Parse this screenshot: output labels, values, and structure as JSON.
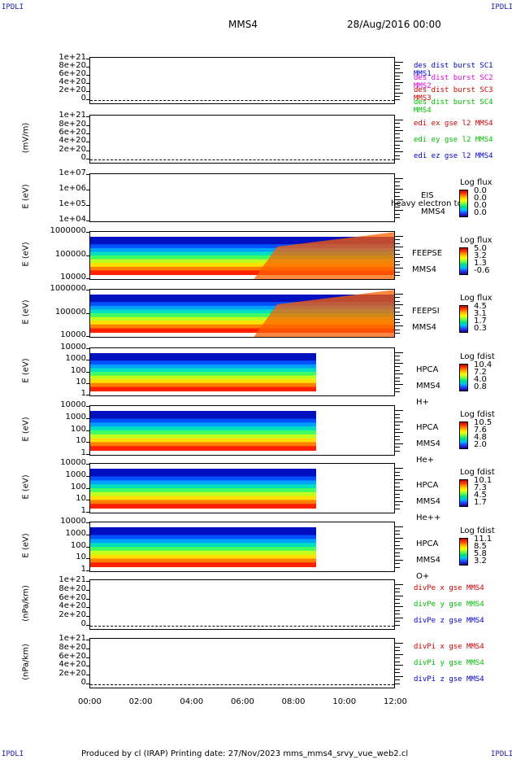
{
  "corners": {
    "tl": "IPDLI",
    "tr": "IPDLI",
    "bl": "IPDLI",
    "br": "IPDLI"
  },
  "header": {
    "title": "MMS4",
    "date": "28/Aug/2016 00:00"
  },
  "footer": {
    "text": "Produced by cl (IRAP)   Printing date: 27/Nov/2023   mms_mms4_srvy_vue_web2.cl"
  },
  "xaxis": {
    "ticks": [
      "00:00",
      "02:00",
      "04:00",
      "06:00",
      "08:00",
      "10:00",
      "12:00"
    ]
  },
  "colors": {
    "red": "#cc0000",
    "magenta": "#dd00dd",
    "green": "#00bb00",
    "blue": "#0000cc"
  },
  "chart_data": [
    {
      "type": "line",
      "panel": "des_dist",
      "ylabel": "",
      "yticks": [
        "1e+21",
        "8e+20",
        "6e+20",
        "4e+20",
        "2e+20",
        "0"
      ],
      "legend": [
        "des dist burst SC1 MMS1",
        "des dist burst SC2 MMS2",
        "des dist burst SC3 MMS3",
        "des dist burst SC4 MMS4"
      ]
    },
    {
      "type": "line",
      "panel": "edi_e",
      "ylabel": "(mV/m)",
      "yticks": [
        "1e+21",
        "8e+20",
        "6e+20",
        "4e+20",
        "2e+20",
        "0"
      ],
      "legend": [
        "edi ex gse l2 MMS4",
        "edi ey gse l2 MMS4",
        "edi ez gse l2 MMS4"
      ]
    },
    {
      "type": "heatmap",
      "panel": "eis",
      "ylabel": "E (eV)",
      "yticks": [
        "1e+07",
        "1e+06",
        "1e+05",
        "1e+04"
      ],
      "labels": [
        "EIS",
        "MMS4"
      ],
      "overlay": "heavy electron to",
      "cbar_title": "Log flux",
      "cbar_values": [
        "0.0",
        "0.0",
        "0.0",
        "0.0"
      ]
    },
    {
      "type": "heatmap",
      "panel": "feepse",
      "ylabel": "E (eV)",
      "yticks": [
        "1000000",
        "100000",
        "10000"
      ],
      "labels": [
        "FEEPSE",
        "MMS4"
      ],
      "cbar_title": "Log flux",
      "cbar_values": [
        "5.0",
        "3.2",
        "1.3",
        "-0.6"
      ]
    },
    {
      "type": "heatmap",
      "panel": "feepsi",
      "ylabel": "E (eV)",
      "yticks": [
        "1000000",
        "100000",
        "10000"
      ],
      "labels": [
        "FEEPSI",
        "MMS4"
      ],
      "cbar_title": "Log flux",
      "cbar_values": [
        "4.5",
        "3.1",
        "1.7",
        "0.3"
      ]
    },
    {
      "type": "heatmap",
      "panel": "hpca_h",
      "ylabel": "E (eV)",
      "yticks": [
        "10000",
        "1000",
        "100",
        "10",
        "1"
      ],
      "labels": [
        "HPCA",
        "MMS4",
        "H+"
      ],
      "cbar_title": "Log fdist",
      "cbar_values": [
        "10.4",
        "7.2",
        "4.0",
        "0.8"
      ]
    },
    {
      "type": "heatmap",
      "panel": "hpca_he",
      "ylabel": "E (eV)",
      "yticks": [
        "10000",
        "1000",
        "100",
        "10",
        "1"
      ],
      "labels": [
        "HPCA",
        "MMS4",
        "He+"
      ],
      "cbar_title": "Log fdist",
      "cbar_values": [
        "10.5",
        "7.6",
        "4.8",
        "2.0"
      ]
    },
    {
      "type": "heatmap",
      "panel": "hpca_hepp",
      "ylabel": "E (eV)",
      "yticks": [
        "10000",
        "1000",
        "100",
        "10",
        "1"
      ],
      "labels": [
        "HPCA",
        "MMS4",
        "He++"
      ],
      "cbar_title": "Log fdist",
      "cbar_values": [
        "10.1",
        "7.3",
        "4.5",
        "1.7"
      ]
    },
    {
      "type": "heatmap",
      "panel": "hpca_o",
      "ylabel": "E (eV)",
      "yticks": [
        "10000",
        "1000",
        "100",
        "10",
        "1"
      ],
      "labels": [
        "HPCA",
        "MMS4",
        "O+"
      ],
      "cbar_title": "Log fdist",
      "cbar_values": [
        "11.1",
        "8.5",
        "5.8",
        "3.2"
      ]
    },
    {
      "type": "line",
      "panel": "divpe",
      "ylabel": "(nPa/km)",
      "yticks": [
        "1e+21",
        "8e+20",
        "6e+20",
        "4e+20",
        "2e+20",
        "0"
      ],
      "legend": [
        "divPe x gse MMS4",
        "divPe y gse MMS4",
        "divPe z gse MMS4"
      ]
    },
    {
      "type": "line",
      "panel": "divpi",
      "ylabel": "(nPa/km)",
      "yticks": [
        "1e+21",
        "8e+20",
        "6e+20",
        "4e+20",
        "2e+20",
        "0"
      ],
      "legend": [
        "divPi x gse MMS4",
        "divPi y gse MMS4",
        "divPi z gse MMS4"
      ]
    }
  ]
}
